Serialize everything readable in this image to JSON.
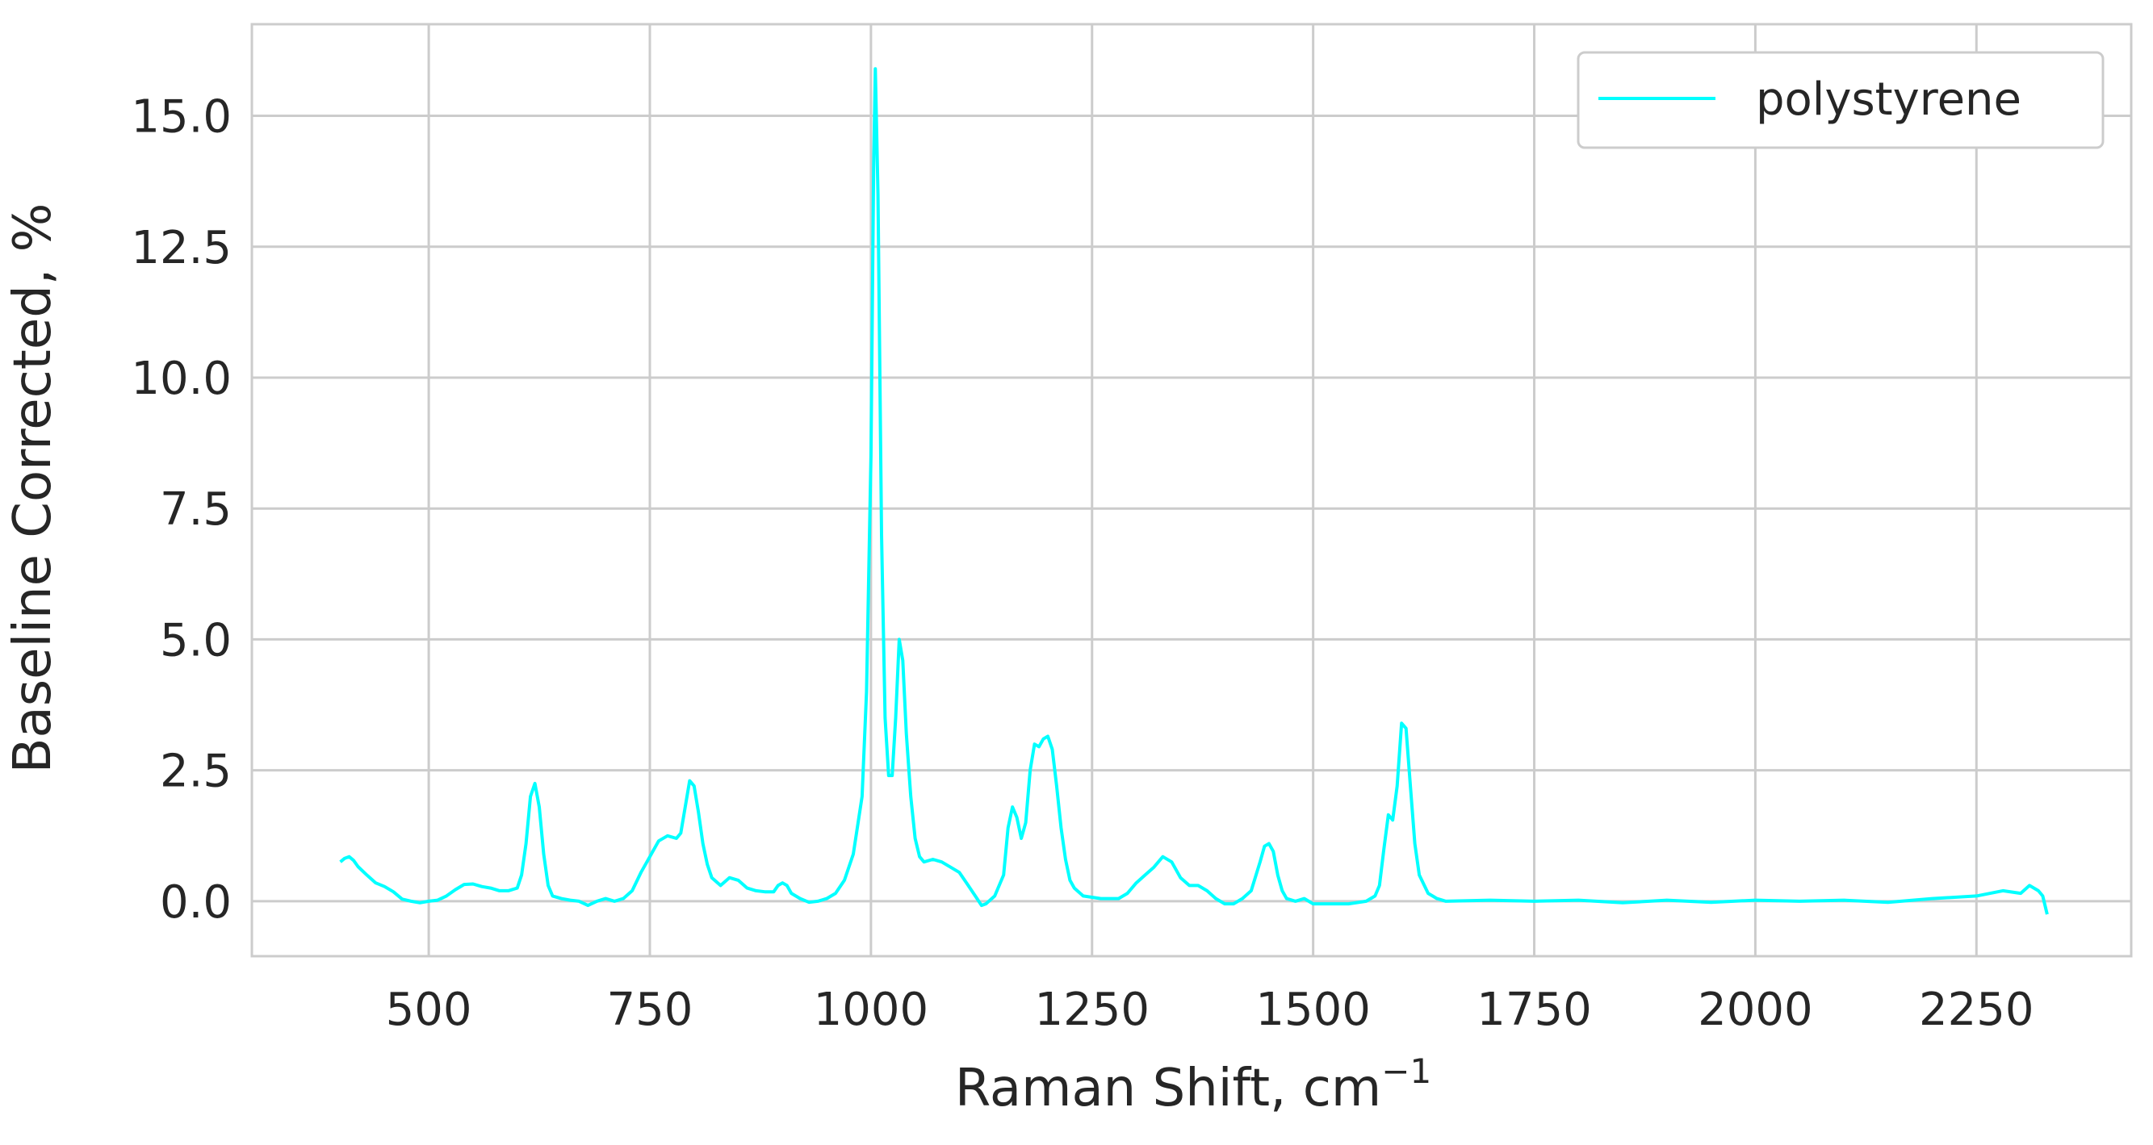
{
  "chart_data": {
    "type": "line",
    "xlabel": "Raman Shift, cm",
    "xlabel_sup": "−1",
    "ylabel": "Baseline Corrected, %",
    "xlim": [
      300,
      2425
    ],
    "ylim": [
      -1.05,
      16.75
    ],
    "grid": true,
    "legend_placement": "upper right",
    "x_ticks": [
      500,
      750,
      1000,
      1250,
      1500,
      1750,
      2000,
      2250
    ],
    "x_tick_labels": [
      "500",
      "750",
      "1000",
      "1250",
      "1500",
      "1750",
      "2000",
      "2250"
    ],
    "y_ticks": [
      0,
      2.5,
      5,
      7.5,
      10,
      12.5,
      15
    ],
    "y_tick_labels": [
      "0.0",
      "2.5",
      "5.0",
      "7.5",
      "10.0",
      "12.5",
      "15.0"
    ],
    "series": [
      {
        "name": "polystyrene",
        "color": "#00ffff",
        "points": [
          [
            400,
            0.75
          ],
          [
            405,
            0.82
          ],
          [
            410,
            0.85
          ],
          [
            415,
            0.78
          ],
          [
            420,
            0.66
          ],
          [
            430,
            0.5
          ],
          [
            440,
            0.35
          ],
          [
            450,
            0.28
          ],
          [
            460,
            0.18
          ],
          [
            470,
            0.04
          ],
          [
            480,
            0.0
          ],
          [
            490,
            -0.03
          ],
          [
            500,
            0.0
          ],
          [
            510,
            0.02
          ],
          [
            520,
            0.1
          ],
          [
            530,
            0.22
          ],
          [
            540,
            0.32
          ],
          [
            550,
            0.33
          ],
          [
            560,
            0.28
          ],
          [
            570,
            0.25
          ],
          [
            580,
            0.2
          ],
          [
            590,
            0.2
          ],
          [
            600,
            0.25
          ],
          [
            605,
            0.5
          ],
          [
            610,
            1.1
          ],
          [
            615,
            2.0
          ],
          [
            620,
            2.25
          ],
          [
            625,
            1.8
          ],
          [
            630,
            0.9
          ],
          [
            635,
            0.3
          ],
          [
            640,
            0.1
          ],
          [
            650,
            0.05
          ],
          [
            660,
            0.02
          ],
          [
            670,
            0.0
          ],
          [
            680,
            -0.08
          ],
          [
            690,
            0.0
          ],
          [
            700,
            0.05
          ],
          [
            710,
            0.0
          ],
          [
            720,
            0.05
          ],
          [
            730,
            0.2
          ],
          [
            740,
            0.55
          ],
          [
            750,
            0.85
          ],
          [
            760,
            1.15
          ],
          [
            770,
            1.25
          ],
          [
            780,
            1.2
          ],
          [
            785,
            1.3
          ],
          [
            790,
            1.8
          ],
          [
            795,
            2.3
          ],
          [
            800,
            2.2
          ],
          [
            805,
            1.7
          ],
          [
            810,
            1.1
          ],
          [
            815,
            0.7
          ],
          [
            820,
            0.45
          ],
          [
            830,
            0.3
          ],
          [
            840,
            0.45
          ],
          [
            850,
            0.4
          ],
          [
            860,
            0.25
          ],
          [
            870,
            0.2
          ],
          [
            880,
            0.18
          ],
          [
            890,
            0.18
          ],
          [
            895,
            0.3
          ],
          [
            900,
            0.35
          ],
          [
            905,
            0.3
          ],
          [
            910,
            0.15
          ],
          [
            920,
            0.05
          ],
          [
            930,
            -0.02
          ],
          [
            940,
            0.0
          ],
          [
            950,
            0.05
          ],
          [
            960,
            0.15
          ],
          [
            970,
            0.4
          ],
          [
            980,
            0.9
          ],
          [
            990,
            2.0
          ],
          [
            995,
            4.0
          ],
          [
            1000,
            8.5
          ],
          [
            1003,
            14.0
          ],
          [
            1005,
            15.9
          ],
          [
            1008,
            13.5
          ],
          [
            1012,
            7.0
          ],
          [
            1016,
            3.5
          ],
          [
            1020,
            2.4
          ],
          [
            1024,
            2.4
          ],
          [
            1028,
            3.5
          ],
          [
            1032,
            5.0
          ],
          [
            1036,
            4.6
          ],
          [
            1040,
            3.2
          ],
          [
            1045,
            2.0
          ],
          [
            1050,
            1.2
          ],
          [
            1055,
            0.85
          ],
          [
            1060,
            0.75
          ],
          [
            1070,
            0.8
          ],
          [
            1080,
            0.75
          ],
          [
            1090,
            0.65
          ],
          [
            1100,
            0.55
          ],
          [
            1110,
            0.3
          ],
          [
            1120,
            0.05
          ],
          [
            1125,
            -0.08
          ],
          [
            1130,
            -0.05
          ],
          [
            1140,
            0.1
          ],
          [
            1150,
            0.5
          ],
          [
            1155,
            1.4
          ],
          [
            1160,
            1.8
          ],
          [
            1165,
            1.6
          ],
          [
            1170,
            1.2
          ],
          [
            1175,
            1.5
          ],
          [
            1180,
            2.5
          ],
          [
            1185,
            3.0
          ],
          [
            1190,
            2.95
          ],
          [
            1195,
            3.1
          ],
          [
            1200,
            3.15
          ],
          [
            1205,
            2.9
          ],
          [
            1210,
            2.2
          ],
          [
            1215,
            1.4
          ],
          [
            1220,
            0.8
          ],
          [
            1225,
            0.4
          ],
          [
            1230,
            0.25
          ],
          [
            1240,
            0.1
          ],
          [
            1260,
            0.05
          ],
          [
            1280,
            0.05
          ],
          [
            1290,
            0.15
          ],
          [
            1300,
            0.35
          ],
          [
            1310,
            0.5
          ],
          [
            1320,
            0.65
          ],
          [
            1330,
            0.85
          ],
          [
            1340,
            0.75
          ],
          [
            1350,
            0.45
          ],
          [
            1360,
            0.3
          ],
          [
            1370,
            0.3
          ],
          [
            1380,
            0.2
          ],
          [
            1390,
            0.05
          ],
          [
            1400,
            -0.05
          ],
          [
            1410,
            -0.05
          ],
          [
            1420,
            0.05
          ],
          [
            1430,
            0.2
          ],
          [
            1440,
            0.75
          ],
          [
            1445,
            1.05
          ],
          [
            1450,
            1.1
          ],
          [
            1455,
            0.95
          ],
          [
            1460,
            0.5
          ],
          [
            1465,
            0.2
          ],
          [
            1470,
            0.05
          ],
          [
            1480,
            0.0
          ],
          [
            1490,
            0.05
          ],
          [
            1500,
            -0.05
          ],
          [
            1520,
            -0.05
          ],
          [
            1540,
            -0.05
          ],
          [
            1560,
            0.0
          ],
          [
            1570,
            0.1
          ],
          [
            1575,
            0.3
          ],
          [
            1580,
            1.0
          ],
          [
            1585,
            1.65
          ],
          [
            1590,
            1.55
          ],
          [
            1595,
            2.2
          ],
          [
            1600,
            3.4
          ],
          [
            1605,
            3.3
          ],
          [
            1610,
            2.2
          ],
          [
            1615,
            1.1
          ],
          [
            1620,
            0.5
          ],
          [
            1630,
            0.15
          ],
          [
            1640,
            0.05
          ],
          [
            1650,
            0.0
          ],
          [
            1700,
            0.02
          ],
          [
            1750,
            0.0
          ],
          [
            1800,
            0.02
          ],
          [
            1850,
            -0.03
          ],
          [
            1900,
            0.02
          ],
          [
            1950,
            -0.02
          ],
          [
            2000,
            0.02
          ],
          [
            2050,
            0.0
          ],
          [
            2100,
            0.02
          ],
          [
            2150,
            -0.02
          ],
          [
            2200,
            0.05
          ],
          [
            2250,
            0.1
          ],
          [
            2280,
            0.2
          ],
          [
            2300,
            0.15
          ],
          [
            2310,
            0.3
          ],
          [
            2320,
            0.2
          ],
          [
            2325,
            0.1
          ],
          [
            2330,
            -0.25
          ]
        ]
      }
    ]
  }
}
